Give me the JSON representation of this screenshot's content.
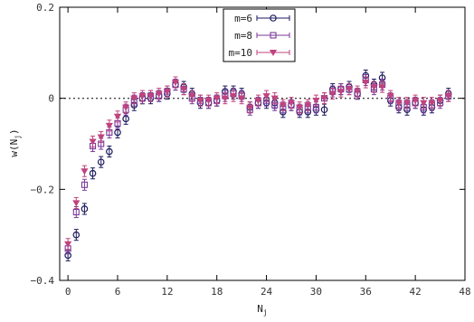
{
  "chart_data": {
    "type": "scatter",
    "title": "",
    "xlabel": "N",
    "xlabel_sub": "j",
    "ylabel": "w(N",
    "ylabel_sub": "j",
    "ylabel_close": ")",
    "xlim": [
      -1,
      48
    ],
    "ylim": [
      -0.4,
      0.2
    ],
    "xticks": [
      0,
      6,
      12,
      18,
      24,
      30,
      36,
      42,
      48
    ],
    "xtick_labels": [
      "0",
      "6",
      "12",
      "18",
      "24",
      "30",
      "36",
      "42",
      "48"
    ],
    "yticks": [
      -0.4,
      -0.2,
      0,
      0.2
    ],
    "ytick_labels": [
      "−0.4",
      "−0.2",
      "0",
      "0.2"
    ],
    "zero_line": "dotted",
    "grid": false,
    "legend_position": "top-center",
    "series": [
      {
        "name": "m=6",
        "marker": "circle",
        "color": "#1a1a5e",
        "x": [
          0,
          1,
          2,
          3,
          4,
          5,
          6,
          7,
          8,
          9,
          10,
          11,
          12,
          13,
          14,
          15,
          16,
          17,
          18,
          19,
          20,
          21,
          22,
          23,
          24,
          25,
          26,
          27,
          28,
          29,
          30,
          31,
          32,
          33,
          34,
          35,
          36,
          37,
          38,
          39,
          40,
          41,
          42,
          43,
          44,
          45,
          46
        ],
        "y": [
          -0.345,
          -0.3,
          -0.243,
          -0.165,
          -0.14,
          -0.117,
          -0.075,
          -0.045,
          -0.015,
          0.0,
          0.0,
          0.005,
          0.01,
          0.03,
          0.025,
          0.01,
          -0.01,
          -0.01,
          -0.005,
          0.015,
          0.015,
          0.01,
          -0.02,
          -0.01,
          -0.01,
          -0.01,
          -0.03,
          -0.015,
          -0.03,
          -0.03,
          -0.025,
          -0.025,
          0.02,
          0.02,
          0.025,
          0.01,
          0.05,
          0.03,
          0.045,
          -0.005,
          -0.02,
          -0.025,
          -0.01,
          -0.025,
          -0.02,
          -0.005,
          0.01
        ],
        "err": [
          0.012,
          0.012,
          0.012,
          0.012,
          0.012,
          0.012,
          0.012,
          0.012,
          0.012,
          0.012,
          0.012,
          0.012,
          0.012,
          0.012,
          0.012,
          0.012,
          0.012,
          0.012,
          0.012,
          0.012,
          0.012,
          0.012,
          0.012,
          0.012,
          0.012,
          0.012,
          0.012,
          0.012,
          0.012,
          0.012,
          0.012,
          0.012,
          0.012,
          0.012,
          0.012,
          0.012,
          0.012,
          0.012,
          0.012,
          0.012,
          0.012,
          0.012,
          0.012,
          0.012,
          0.012,
          0.012,
          0.012
        ]
      },
      {
        "name": "m=8",
        "marker": "square",
        "color": "#7a3a9a",
        "x": [
          0,
          1,
          2,
          3,
          4,
          5,
          6,
          7,
          8,
          9,
          10,
          11,
          12,
          13,
          14,
          15,
          16,
          17,
          18,
          19,
          20,
          21,
          22,
          23,
          24,
          25,
          26,
          27,
          28,
          29,
          30,
          31,
          32,
          33,
          34,
          35,
          36,
          37,
          38,
          39,
          40,
          41,
          42,
          43,
          44,
          45,
          46
        ],
        "y": [
          -0.33,
          -0.25,
          -0.19,
          -0.105,
          -0.1,
          -0.075,
          -0.055,
          -0.025,
          -0.005,
          0.0,
          0.005,
          0.005,
          0.015,
          0.03,
          0.02,
          0.0,
          -0.005,
          -0.01,
          -0.005,
          0.005,
          0.01,
          0.005,
          -0.025,
          -0.01,
          -0.005,
          -0.015,
          -0.02,
          -0.015,
          -0.025,
          -0.02,
          -0.02,
          0.0,
          0.015,
          0.02,
          0.02,
          0.01,
          0.04,
          0.02,
          0.03,
          0.0,
          -0.015,
          -0.015,
          -0.01,
          -0.02,
          -0.015,
          -0.01,
          0.005
        ],
        "err": [
          0.012,
          0.012,
          0.012,
          0.012,
          0.012,
          0.012,
          0.012,
          0.012,
          0.012,
          0.012,
          0.012,
          0.012,
          0.012,
          0.012,
          0.012,
          0.012,
          0.012,
          0.012,
          0.012,
          0.012,
          0.012,
          0.012,
          0.012,
          0.012,
          0.012,
          0.012,
          0.012,
          0.012,
          0.012,
          0.012,
          0.012,
          0.012,
          0.012,
          0.012,
          0.012,
          0.012,
          0.012,
          0.012,
          0.012,
          0.012,
          0.012,
          0.012,
          0.012,
          0.012,
          0.012,
          0.012,
          0.012
        ]
      },
      {
        "name": "m=10",
        "marker": "triangle-down",
        "color": "#c0437d",
        "x": [
          0,
          1,
          2,
          3,
          4,
          5,
          6,
          7,
          8,
          9,
          10,
          11,
          12,
          13,
          14,
          15,
          16,
          17,
          18,
          19,
          20,
          21,
          22,
          23,
          24,
          25,
          26,
          27,
          28,
          29,
          30,
          31,
          32,
          33,
          34,
          35,
          36,
          37,
          38,
          39,
          40,
          41,
          42,
          43,
          44,
          45,
          46
        ],
        "y": [
          -0.32,
          -0.23,
          -0.16,
          -0.095,
          -0.085,
          -0.06,
          -0.04,
          -0.02,
          0.0,
          0.005,
          0.005,
          0.01,
          0.015,
          0.035,
          0.02,
          0.005,
          -0.005,
          -0.005,
          0.0,
          0.0,
          0.005,
          0.0,
          -0.02,
          -0.005,
          0.005,
          0.0,
          -0.015,
          -0.01,
          -0.02,
          -0.015,
          -0.005,
          0.0,
          0.01,
          0.015,
          0.02,
          0.015,
          0.035,
          0.025,
          0.025,
          0.005,
          -0.01,
          -0.01,
          -0.005,
          -0.01,
          -0.01,
          -0.005,
          0.005
        ],
        "err": [
          0.012,
          0.012,
          0.012,
          0.012,
          0.012,
          0.012,
          0.012,
          0.012,
          0.012,
          0.012,
          0.012,
          0.012,
          0.012,
          0.012,
          0.012,
          0.012,
          0.012,
          0.012,
          0.012,
          0.012,
          0.012,
          0.012,
          0.012,
          0.012,
          0.012,
          0.012,
          0.012,
          0.012,
          0.012,
          0.012,
          0.012,
          0.012,
          0.012,
          0.012,
          0.012,
          0.012,
          0.012,
          0.012,
          0.012,
          0.012,
          0.012,
          0.012,
          0.012,
          0.012,
          0.012,
          0.012,
          0.012
        ]
      }
    ]
  }
}
